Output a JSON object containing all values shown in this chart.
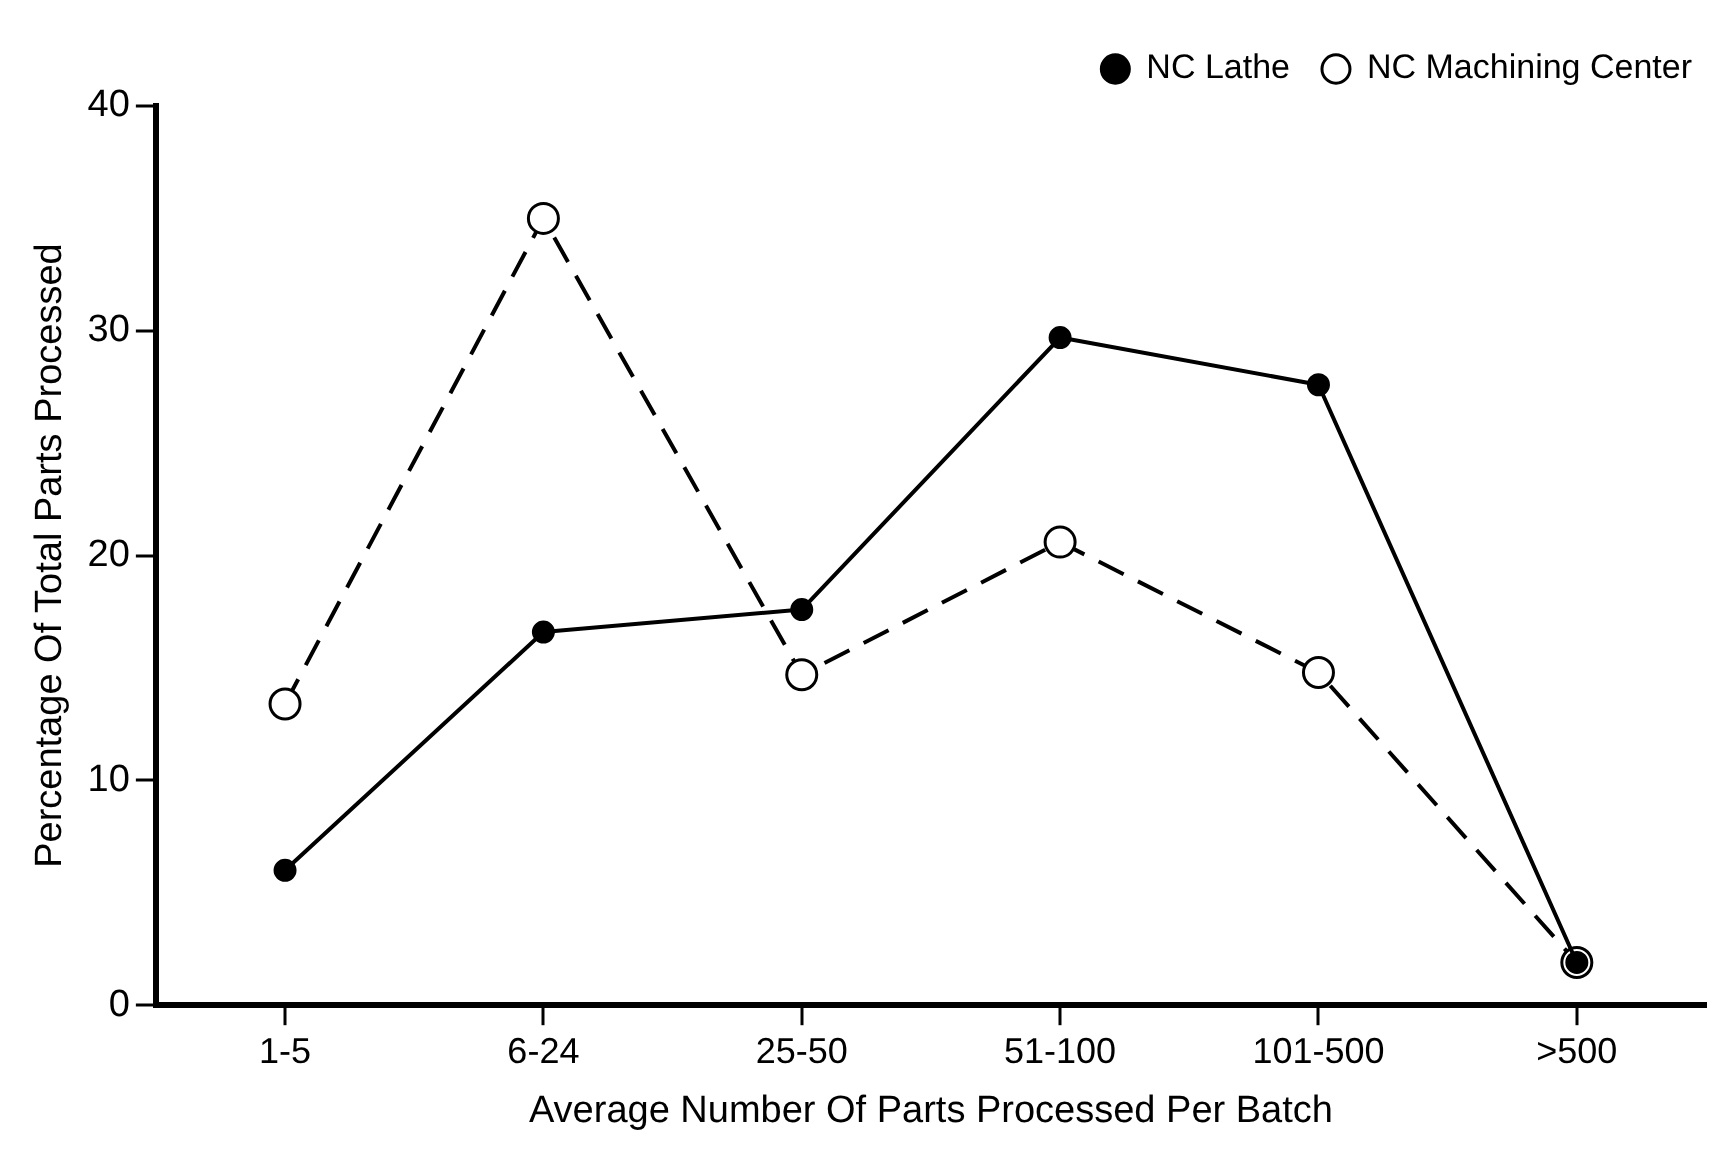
{
  "chart_data": {
    "type": "line",
    "xlabel": "Average Number Of Parts Processed Per Batch",
    "ylabel": "Percentage Of Total Parts Processed",
    "categories": [
      "1-5",
      "6-24",
      "25-50",
      "51-100",
      "101-500",
      ">500"
    ],
    "series": [
      {
        "name": "NC Lathe",
        "color": "#000000",
        "line_style": "solid",
        "values": [
          6.0,
          16.6,
          17.6,
          29.7,
          27.6,
          1.9
        ]
      },
      {
        "name": "NC Machining Center",
        "color": "#000000",
        "line_style": "dashed",
        "values": [
          13.4,
          35.0,
          14.7,
          20.6,
          14.8,
          1.9
        ]
      }
    ],
    "ylim": [
      0,
      40
    ],
    "yticks": [
      0,
      10,
      20,
      30,
      40
    ],
    "grid": false,
    "legend": "top right",
    "marker": "circle"
  }
}
